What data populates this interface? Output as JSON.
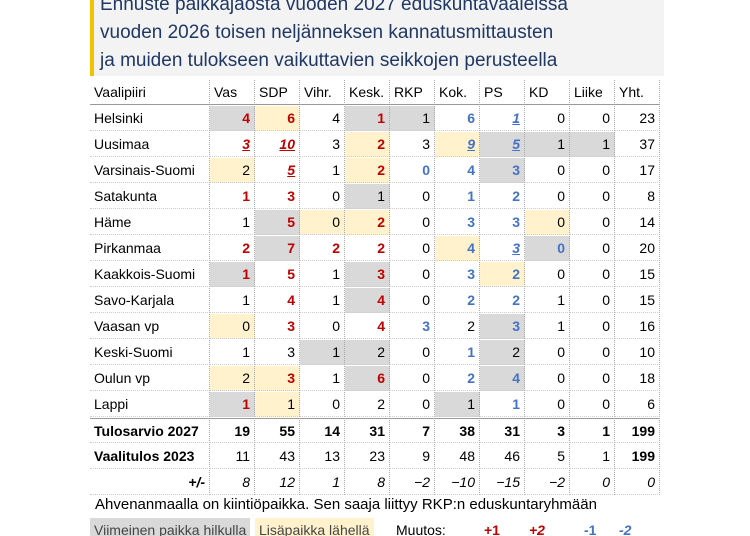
{
  "header": {
    "title_lines": [
      "Ennuste paikkajaosta vuoden 2027 eduskuntavaaleissa",
      "vuoden 2026 toisen neljänneksen kannatusmittausten",
      "ja muiden tulokseen vaikuttavien seikkojen perusteella"
    ]
  },
  "table": {
    "columns": [
      "Vaalipiiri",
      "Vas",
      "SDP",
      "Vihr.",
      "Kesk.",
      "RKP",
      "Kok.",
      "PS",
      "KD",
      "Liike",
      "Yht."
    ],
    "rows": [
      [
        "Helsinki",
        4,
        6,
        4,
        1,
        1,
        6,
        1,
        0,
        0,
        23
      ],
      [
        "Uusimaa",
        3,
        10,
        3,
        2,
        3,
        9,
        5,
        1,
        1,
        37
      ],
      [
        "Varsinais-Suomi",
        2,
        5,
        1,
        2,
        0,
        4,
        3,
        0,
        0,
        17
      ],
      [
        "Satakunta",
        1,
        3,
        0,
        1,
        0,
        1,
        2,
        0,
        0,
        8
      ],
      [
        "Häme",
        1,
        5,
        0,
        2,
        0,
        3,
        3,
        0,
        0,
        14
      ],
      [
        "Pirkanmaa",
        2,
        7,
        2,
        2,
        0,
        4,
        3,
        0,
        0,
        20
      ],
      [
        "Kaakkois-Suomi",
        1,
        5,
        1,
        3,
        0,
        3,
        2,
        0,
        0,
        15
      ],
      [
        "Savo-Karjala",
        1,
        4,
        1,
        4,
        0,
        2,
        2,
        1,
        0,
        15
      ],
      [
        "Vaasan vp",
        0,
        3,
        0,
        4,
        3,
        2,
        3,
        1,
        0,
        16
      ],
      [
        "Keski-Suomi",
        1,
        3,
        1,
        2,
        0,
        1,
        2,
        0,
        0,
        10
      ],
      [
        "Oulun vp",
        2,
        3,
        1,
        6,
        0,
        2,
        4,
        0,
        0,
        18
      ],
      [
        "Lappi",
        1,
        1,
        0,
        2,
        0,
        1,
        1,
        0,
        0,
        6
      ],
      [
        "Tulosarvio 2027",
        19,
        55,
        14,
        31,
        7,
        38,
        31,
        3,
        1,
        199
      ],
      [
        "Vaalitulos 2023",
        11,
        43,
        13,
        23,
        9,
        48,
        46,
        5,
        1,
        199
      ],
      [
        "+/-",
        "8",
        "12",
        "1",
        "8",
        "−2",
        "−10",
        "−15",
        "−2",
        "0",
        "0"
      ]
    ]
  },
  "footer": {
    "note": "Ahvenanmaalla on kiintiöpaikka. Sen saaja liittyy RKP:n eduskuntaryhmään"
  },
  "legend": {
    "last_seat": "Viimeinen paikka hilkulla",
    "extra_seat": "Lisäpaikka lähellä",
    "change_label": "Muutos:",
    "changes": [
      "+1",
      "+2",
      "-1",
      "-2"
    ]
  }
}
